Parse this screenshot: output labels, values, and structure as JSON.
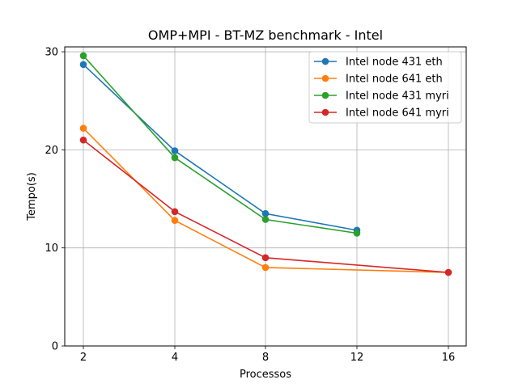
{
  "chart_data": {
    "type": "line",
    "title": "OMP+MPI - BT-MZ benchmark - Intel",
    "xlabel": "Processos",
    "ylabel": "Tempo(s)",
    "categories": [
      "2",
      "4",
      "8",
      "12",
      "16"
    ],
    "ylim": [
      0,
      30.5
    ],
    "yticks": [
      0,
      10,
      20,
      30
    ],
    "grid": true,
    "legend_position": "top-right",
    "series": [
      {
        "name": "Intel node 431 eth",
        "color": "#1f77b4",
        "values": [
          28.7,
          19.9,
          13.5,
          11.8,
          null
        ]
      },
      {
        "name": "Intel node 641 eth",
        "color": "#ff7f0e",
        "values": [
          22.2,
          12.8,
          8.0,
          null,
          7.5
        ]
      },
      {
        "name": "Intel node 431 myri",
        "color": "#2ca02c",
        "values": [
          29.6,
          19.2,
          12.9,
          11.5,
          null
        ]
      },
      {
        "name": "Intel node 641 myri",
        "color": "#d62728",
        "values": [
          21.0,
          13.7,
          9.0,
          null,
          7.5
        ]
      }
    ]
  }
}
